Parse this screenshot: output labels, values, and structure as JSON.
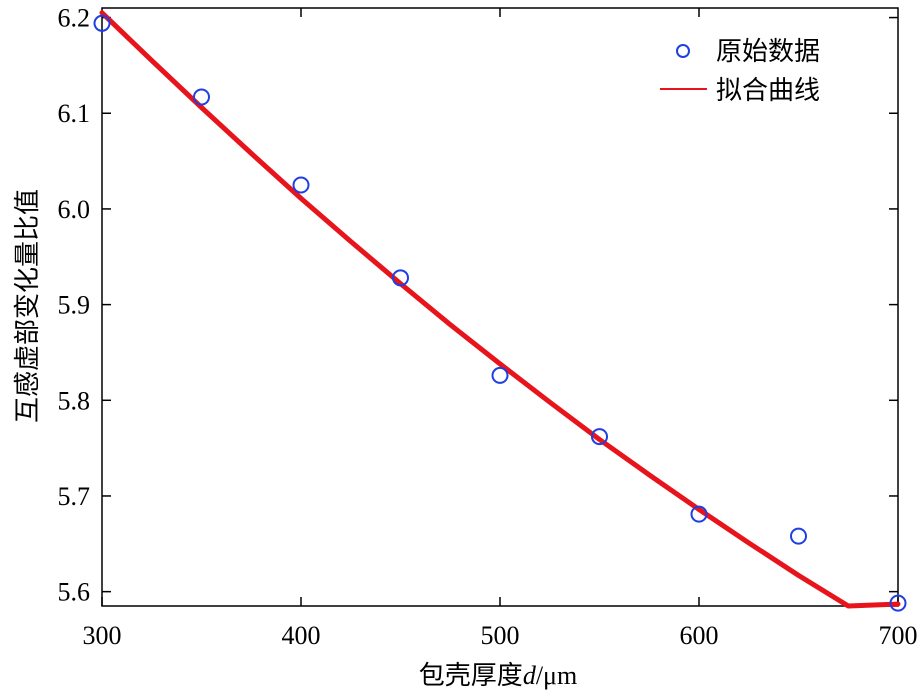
{
  "chart_data": {
    "type": "scatter",
    "xlabel_prefix": "包壳厚度",
    "xlabel_var": "d",
    "xlabel_unit": "/μm",
    "ylabel": "互感虚部变化量比值",
    "xlim": [
      300,
      700
    ],
    "ylim": [
      5.585,
      6.21
    ],
    "xticks": [
      300,
      400,
      500,
      600,
      700
    ],
    "xtick_labels": [
      "300",
      "400",
      "500",
      "600",
      "700"
    ],
    "yticks": [
      5.6,
      5.7,
      5.8,
      5.9,
      6.0,
      6.1,
      6.2
    ],
    "ytick_labels": [
      "5.6",
      "5.7",
      "5.8",
      "5.9",
      "6.0",
      "6.1",
      "6.2"
    ],
    "grid": false,
    "legend_position": "top-right",
    "series": [
      {
        "name": "原始数据",
        "kind": "scatter",
        "color": "#1f3fe0",
        "marker": "circle-open",
        "x": [
          300,
          350,
          400,
          450,
          500,
          550,
          600,
          650,
          700
        ],
        "y": [
          6.194,
          6.117,
          6.025,
          5.928,
          5.826,
          5.762,
          5.681,
          5.658,
          5.588
        ]
      },
      {
        "name": "拟合曲线",
        "kind": "line",
        "color": "#e8141c",
        "x": [
          300,
          325,
          350,
          375,
          400,
          425,
          450,
          475,
          500,
          525,
          550,
          575,
          600,
          625,
          650,
          675,
          700
        ],
        "y": [
          6.205,
          6.155,
          6.106,
          6.058,
          6.011,
          5.966,
          5.922,
          5.879,
          5.838,
          5.798,
          5.759,
          5.722,
          5.686,
          5.651,
          5.617,
          5.585,
          5.587
        ]
      }
    ]
  }
}
